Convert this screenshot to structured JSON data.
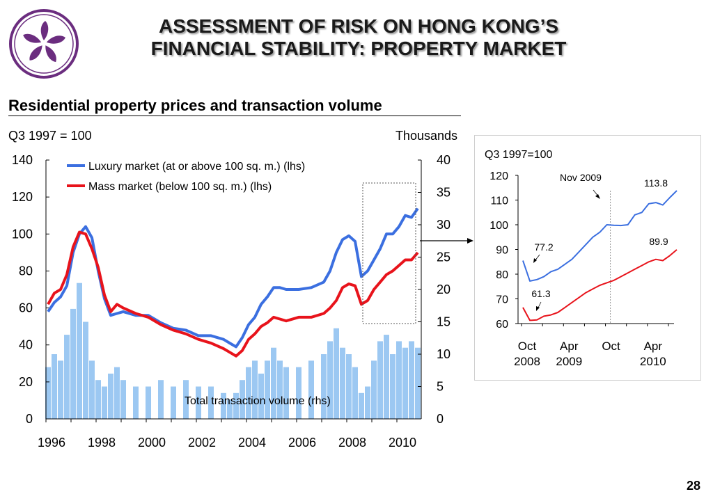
{
  "page": {
    "title_line1": "ASSESSMENT OF RISK ON HONG KONG’S",
    "title_line2": "FINANCIAL STABILITY: PROPERTY MARKET",
    "subtitle": "Residential property prices and transaction volume",
    "page_number": "28"
  },
  "colors": {
    "luxury": "#3b6fe0",
    "mass": "#e8131b",
    "volume": "#9cc8f2",
    "logo": "#6b2d7f"
  },
  "chart_data": [
    {
      "type": "line",
      "left_unit_label": "Q3 1997 = 100",
      "right_unit_label": "Thousands",
      "x_ticks": [
        "1996",
        "1998",
        "2000",
        "2002",
        "2004",
        "2006",
        "2008",
        "2010"
      ],
      "xlim": [
        1996,
        2010.75
      ],
      "ylim_left": [
        0,
        140
      ],
      "yticks_left": [
        "0",
        "20",
        "40",
        "60",
        "80",
        "100",
        "120",
        "140"
      ],
      "ylim_right": [
        0,
        40
      ],
      "yticks_right": [
        "0",
        "5",
        "10",
        "15",
        "20",
        "25",
        "30",
        "35",
        "40"
      ],
      "annotation_volume": "Total transaction volume (rhs)",
      "series": [
        {
          "name": "Luxury market (at or above 100 sq. m.) (lhs)",
          "axis": "left",
          "x": [
            1996.0,
            1996.25,
            1996.5,
            1996.75,
            1997.0,
            1997.25,
            1997.5,
            1997.75,
            1998.0,
            1998.25,
            1998.5,
            1998.75,
            1999.0,
            1999.5,
            2000.0,
            2000.5,
            2001.0,
            2001.5,
            2002.0,
            2002.5,
            2003.0,
            2003.25,
            2003.5,
            2003.75,
            2004.0,
            2004.25,
            2004.5,
            2004.75,
            2005.0,
            2005.25,
            2005.5,
            2006.0,
            2006.5,
            2007.0,
            2007.25,
            2007.5,
            2007.75,
            2008.0,
            2008.25,
            2008.5,
            2008.75,
            2009.0,
            2009.25,
            2009.5,
            2009.75,
            2010.0,
            2010.25,
            2010.5,
            2010.75
          ],
          "y": [
            58,
            63,
            66,
            72,
            90,
            100,
            104,
            98,
            80,
            65,
            56,
            57,
            58,
            56,
            56,
            52,
            49,
            48,
            45,
            45,
            43,
            41,
            39,
            44,
            51,
            55,
            62,
            66,
            71,
            71,
            70,
            70,
            71,
            74,
            80,
            90,
            97,
            99,
            96,
            77,
            80,
            86,
            92,
            100,
            100,
            104,
            110,
            109,
            113.8
          ]
        },
        {
          "name": "Mass market (below 100 sq. m.) (lhs)",
          "axis": "left",
          "x": [
            1996.0,
            1996.25,
            1996.5,
            1996.75,
            1997.0,
            1997.25,
            1997.5,
            1997.75,
            1998.0,
            1998.25,
            1998.5,
            1998.75,
            1999.0,
            1999.5,
            2000.0,
            2000.5,
            2001.0,
            2001.5,
            2002.0,
            2002.5,
            2003.0,
            2003.25,
            2003.5,
            2003.75,
            2004.0,
            2004.25,
            2004.5,
            2004.75,
            2005.0,
            2005.25,
            2005.5,
            2006.0,
            2006.5,
            2007.0,
            2007.25,
            2007.5,
            2007.75,
            2008.0,
            2008.25,
            2008.5,
            2008.75,
            2009.0,
            2009.25,
            2009.5,
            2009.75,
            2010.0,
            2010.25,
            2010.5,
            2010.75
          ],
          "y": [
            62,
            68,
            70,
            78,
            93,
            101,
            100,
            92,
            82,
            67,
            58,
            62,
            60,
            57,
            55,
            51,
            48,
            46,
            43,
            41,
            38,
            36,
            34,
            37,
            43,
            46,
            50,
            52,
            55,
            54,
            53,
            55,
            55,
            57,
            60,
            64,
            71,
            73,
            72,
            62,
            64,
            70,
            74,
            78,
            80,
            83,
            86,
            86,
            89.9
          ]
        },
        {
          "name": "Total transaction volume (rhs)",
          "axis": "right",
          "type": "bar",
          "x": [
            1996.0,
            1996.25,
            1996.5,
            1996.75,
            1997.0,
            1997.25,
            1997.5,
            1997.75,
            1998.0,
            1998.25,
            1998.5,
            1998.75,
            1999.0,
            1999.5,
            2000.0,
            2000.5,
            2001.0,
            2001.5,
            2002.0,
            2002.5,
            2003.0,
            2003.25,
            2003.5,
            2003.75,
            2004.0,
            2004.25,
            2004.5,
            2004.75,
            2005.0,
            2005.25,
            2005.5,
            2006.0,
            2006.5,
            2007.0,
            2007.25,
            2007.5,
            2007.75,
            2008.0,
            2008.25,
            2008.5,
            2008.75,
            2009.0,
            2009.25,
            2009.5,
            2009.75,
            2010.0,
            2010.25,
            2010.5,
            2010.75
          ],
          "y": [
            8,
            10,
            9,
            13,
            17,
            21,
            15,
            9,
            6,
            5,
            7,
            8,
            6,
            5,
            5,
            6,
            5,
            6,
            5,
            5,
            4,
            3,
            4,
            6,
            8,
            9,
            7,
            9,
            11,
            9,
            8,
            8,
            9,
            10,
            12,
            14,
            11,
            10,
            8,
            4,
            5,
            9,
            12,
            13,
            10,
            12,
            11,
            12,
            11
          ]
        }
      ]
    },
    {
      "type": "line",
      "unit_label": "Q3 1997=100",
      "ylim": [
        60,
        120
      ],
      "yticks": [
        "60",
        "70",
        "80",
        "90",
        "100",
        "110",
        "120"
      ],
      "x_ticks": [
        "Oct\n2008",
        "Apr\n2009",
        "Oct",
        "Apr\n2010"
      ],
      "x_tick_positions": [
        0,
        6,
        12,
        18
      ],
      "reference_line": {
        "x": 12,
        "label": "Nov 2009"
      },
      "annotations": [
        "77.2",
        "61.3",
        "113.8",
        "89.9"
      ],
      "series": [
        {
          "name": "Luxury market (at or above 100 sq. m.) (lhs)",
          "x": [
            -0.5,
            0.5,
            1.5,
            2.5,
            3.5,
            4.5,
            5.5,
            6.5,
            7.5,
            8.5,
            9.5,
            10.5,
            11.5,
            12.5,
            13.5,
            14.5,
            15.5,
            16.5,
            17.5,
            18.5,
            19.5,
            20.5,
            21.5
          ],
          "y": [
            85.5,
            77.2,
            77.8,
            79,
            81,
            82,
            84,
            86,
            89,
            92,
            95,
            97,
            100,
            99.8,
            99.7,
            100,
            104,
            105,
            108.5,
            109,
            108,
            111,
            113.8
          ]
        },
        {
          "name": "Mass market (below 100 sq. m.) (lhs)",
          "x": [
            -0.5,
            0.5,
            1.5,
            2.5,
            3.5,
            4.5,
            5.5,
            6.5,
            7.5,
            8.5,
            9.5,
            10.5,
            11.5,
            12.5,
            13.5,
            14.5,
            15.5,
            16.5,
            17.5,
            18.5,
            19.5,
            20.5,
            21.5
          ],
          "y": [
            66.5,
            61.3,
            61.5,
            63,
            63.5,
            64.5,
            66.5,
            68.5,
            70.5,
            72.5,
            74,
            75.5,
            76.5,
            77.5,
            79,
            80.5,
            82,
            83.5,
            85,
            86,
            85.5,
            87.5,
            89.9
          ]
        }
      ]
    }
  ]
}
